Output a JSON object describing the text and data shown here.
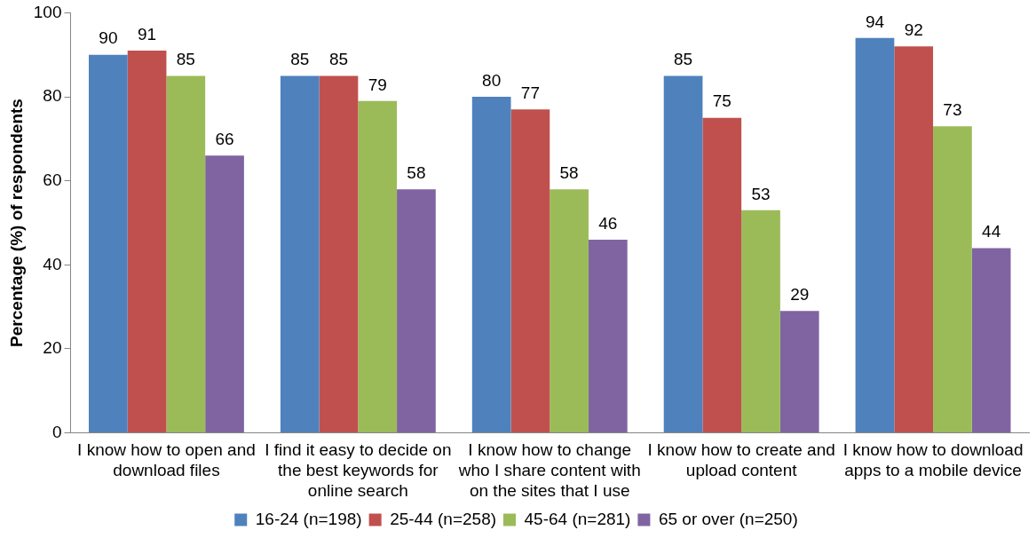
{
  "chart_data": {
    "type": "bar",
    "ylabel": "Percentage (%) of respondents",
    "categories": [
      "I know how to open and download files",
      "I find it easy to decide on the best keywords for online search",
      "I know how to change who I share content with on the sites that I use",
      "I know how to create and upload content",
      "I know how to download apps to a mobile device"
    ],
    "series": [
      {
        "name": "16-24 (n=198)",
        "color": "#4f81bd",
        "values": [
          90,
          85,
          80,
          85,
          94
        ]
      },
      {
        "name": "25-44 (n=258)",
        "color": "#c0504d",
        "values": [
          91,
          85,
          77,
          75,
          92
        ]
      },
      {
        "name": "45-64 (n=281)",
        "color": "#9bbb59",
        "values": [
          85,
          79,
          58,
          53,
          73
        ]
      },
      {
        "name": "65 or over (n=250)",
        "color": "#8064a2",
        "values": [
          66,
          58,
          46,
          29,
          44
        ]
      }
    ],
    "ylim": [
      0,
      100
    ],
    "yticks": [
      0,
      20,
      40,
      60,
      80,
      100
    ],
    "grid": false,
    "legend": "bottom",
    "data_labels": true
  }
}
